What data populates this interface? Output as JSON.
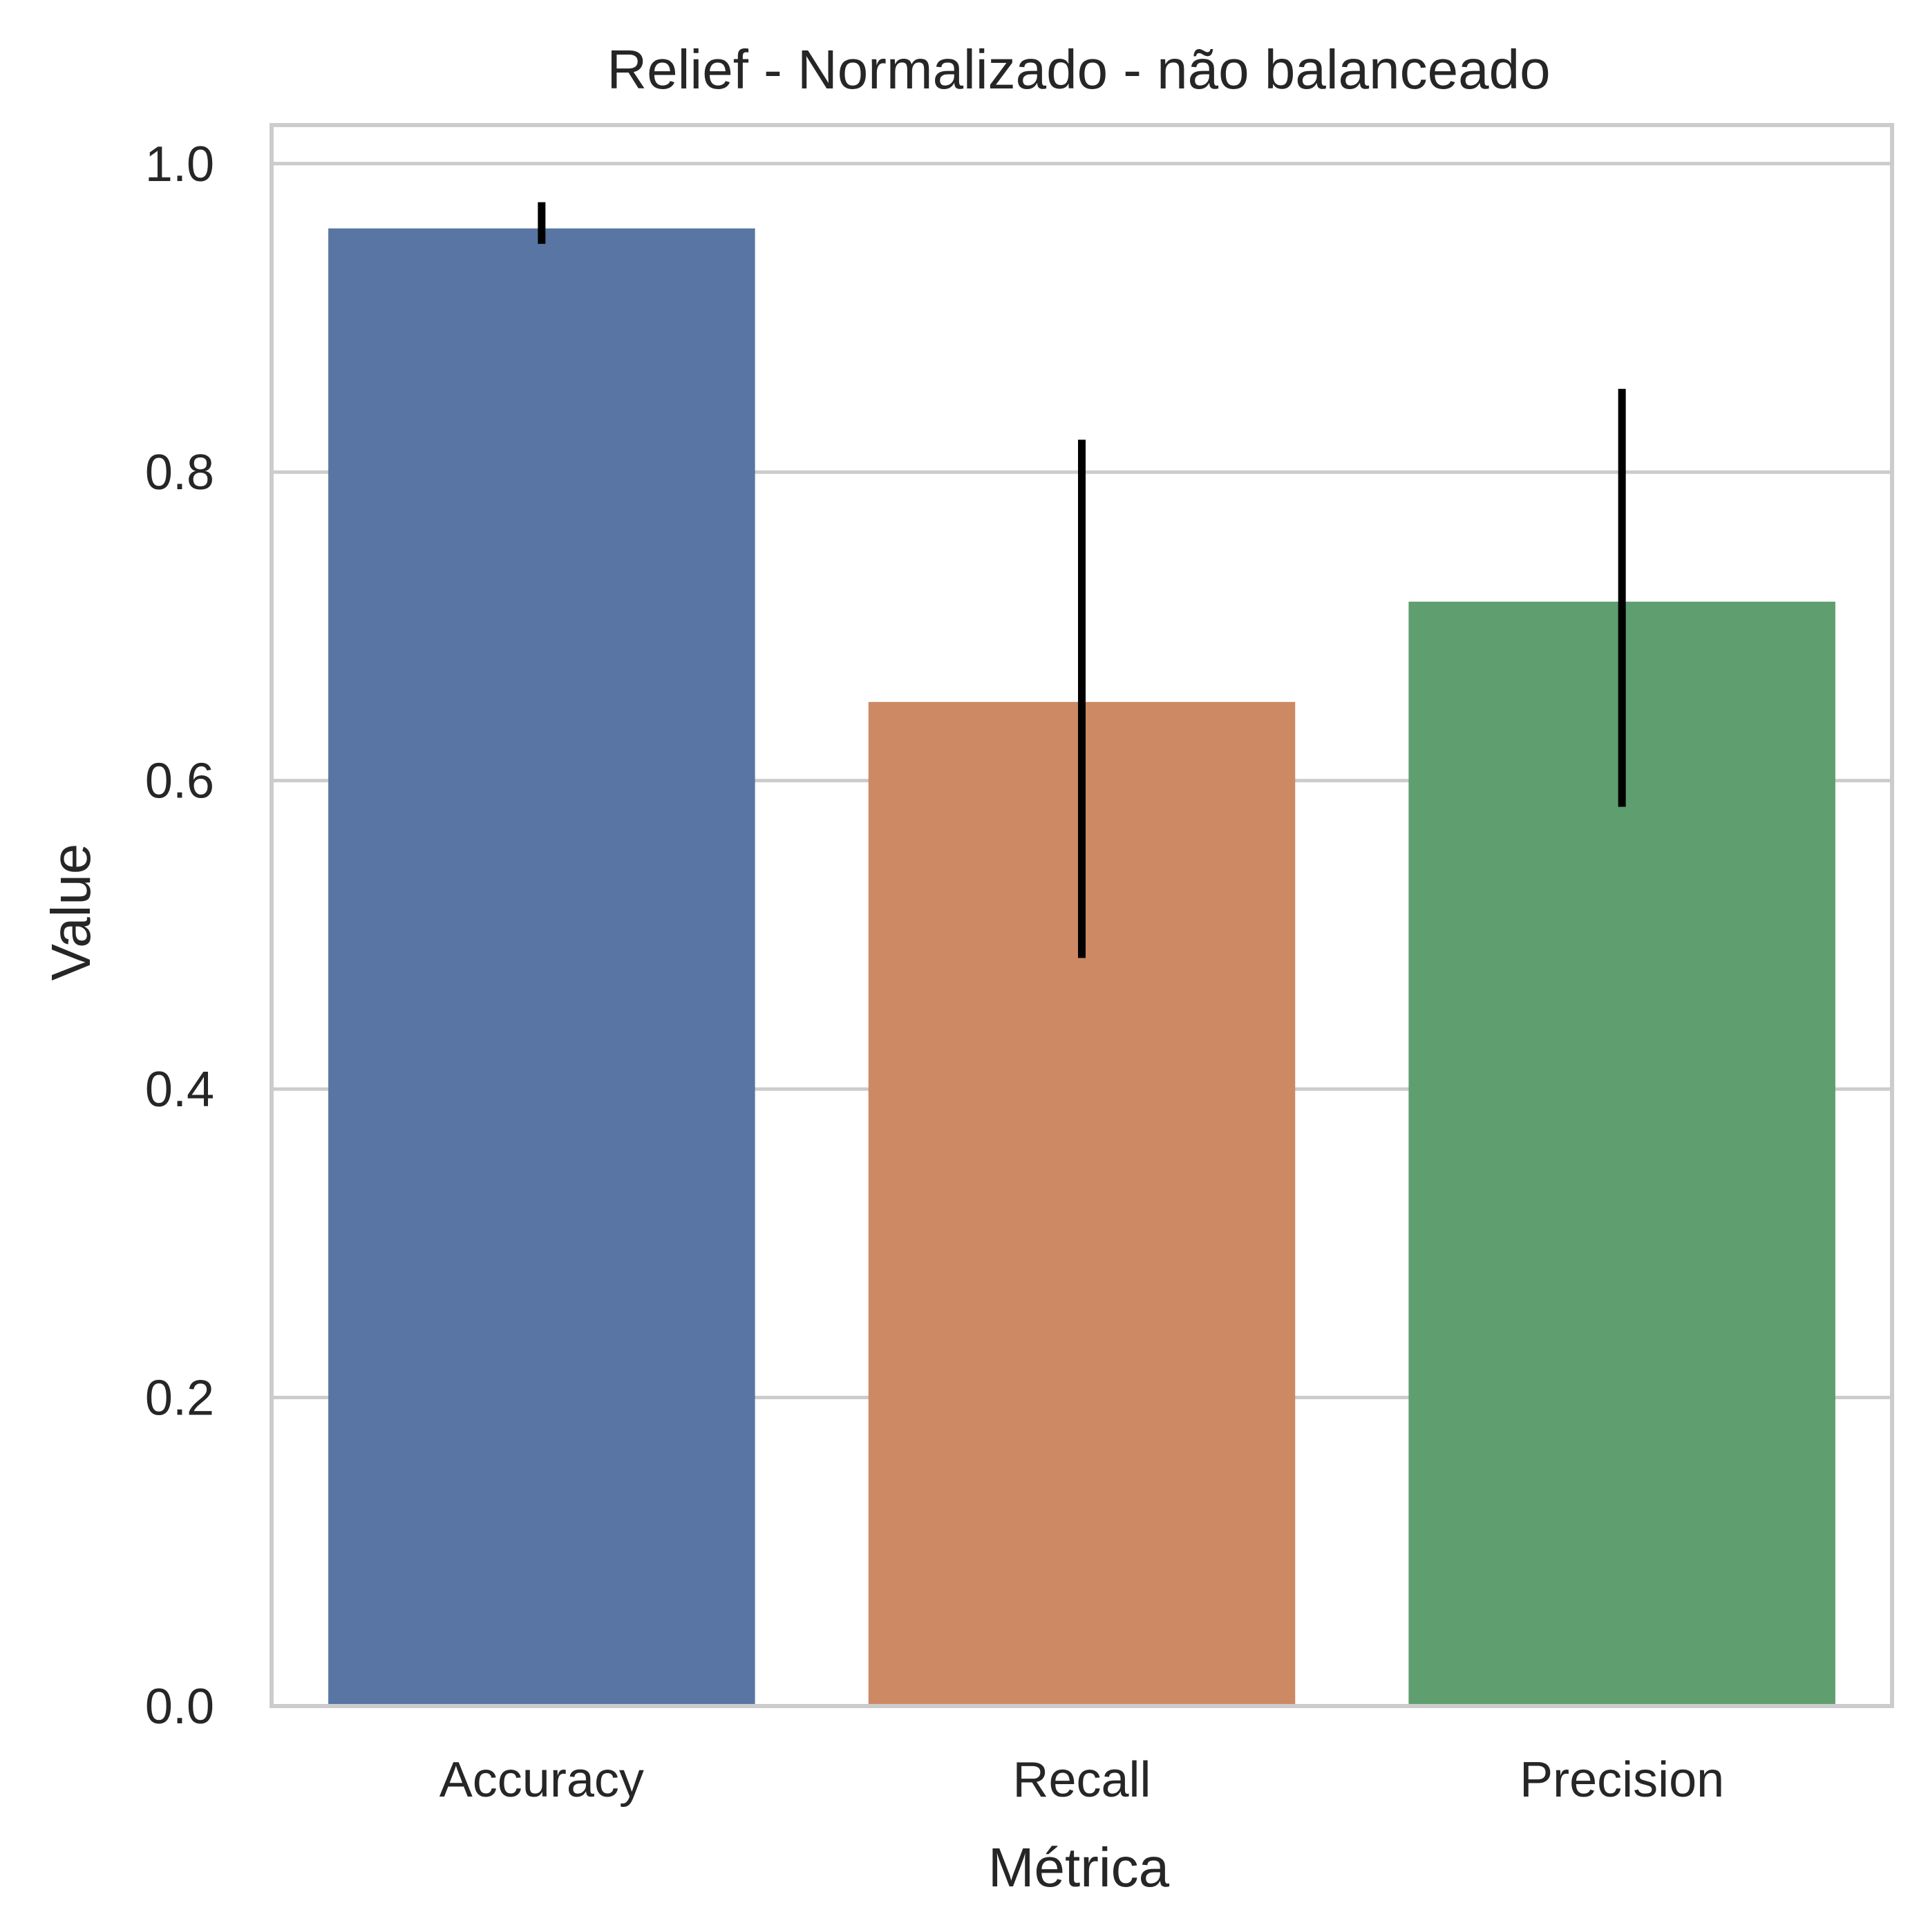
{
  "chart_data": {
    "type": "bar",
    "title": "Relief - Normalizado - não balanceado",
    "xlabel": "Métrica",
    "ylabel": "Value",
    "categories": [
      "Accuracy",
      "Recall",
      "Precision"
    ],
    "values": [
      0.958,
      0.651,
      0.716
    ],
    "error_low": [
      0.948,
      0.485,
      0.583
    ],
    "error_high": [
      0.975,
      0.821,
      0.854
    ],
    "ylim": [
      0,
      1.025
    ],
    "yticks": [
      0.0,
      0.2,
      0.4,
      0.6,
      0.8,
      1.0
    ],
    "ytick_labels": [
      "0.0",
      "0.2",
      "0.4",
      "0.6",
      "0.8",
      "1.0"
    ],
    "grid": "horizontal",
    "legend": "none",
    "colors": [
      "#5975a4",
      "#cc8963",
      "#5f9e6e"
    ],
    "error_color": "#000000",
    "grid_color": "#cccccc",
    "frame_color": "#cccccc"
  }
}
